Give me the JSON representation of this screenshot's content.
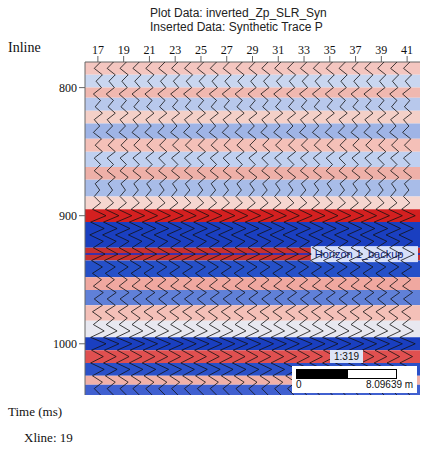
{
  "chart_data": {
    "type": "seismic_section",
    "title": "Plot Data: inverted_Zp_SLR_Syn",
    "subtitle": "Inserted Data: Synthetic Trace P",
    "x_label": "Inline",
    "y_label": "Time (ms)",
    "footer": "Xline: 19",
    "xlim": [
      16,
      42
    ],
    "xticks": [
      17,
      19,
      21,
      23,
      25,
      27,
      29,
      31,
      33,
      35,
      37,
      39,
      41
    ],
    "ylim": [
      780,
      1040
    ],
    "yticks": [
      800,
      900,
      1000
    ],
    "inlines": [
      17,
      18,
      19,
      20,
      21,
      22,
      23,
      24,
      25,
      26,
      27,
      28,
      29,
      30,
      31,
      32,
      33,
      34,
      35,
      36,
      37,
      38,
      39,
      40,
      41
    ],
    "trace_times": [
      780,
      785,
      790,
      795,
      800,
      805,
      810,
      815,
      820,
      825,
      830,
      835,
      840,
      845,
      850,
      855,
      860,
      865,
      870,
      875,
      880,
      885,
      890,
      895,
      900,
      905,
      910,
      915,
      920,
      925,
      930,
      935,
      940,
      945,
      950,
      955,
      960,
      965,
      970,
      975,
      980,
      985,
      990,
      995,
      1000,
      1005,
      1010,
      1015,
      1020,
      1025,
      1030,
      1035,
      1040
    ],
    "trace_amplitude": [
      0.3,
      -0.4,
      0.5,
      -0.2,
      0.4,
      -0.5,
      0.3,
      -0.3,
      0.5,
      -0.4,
      0.2,
      -0.5,
      0.4,
      -0.3,
      0.5,
      -0.4,
      0.3,
      -0.4,
      0.5,
      -0.3,
      0.2,
      -0.4,
      0.3,
      -0.6,
      0.9,
      -0.8,
      0.7,
      -0.9,
      0.6,
      -0.5,
      0.8,
      -0.7,
      0.5,
      -0.6,
      0.4,
      -0.5,
      0.6,
      -0.4,
      0.5,
      -0.6,
      0.4,
      -0.5,
      0.7,
      -0.8,
      0.9,
      -0.7,
      0.6,
      -0.8,
      0.7,
      -0.6,
      0.5,
      -0.4,
      0.3
    ],
    "layers": [
      {
        "top": 780,
        "base": 790,
        "color": "#f4c6c0"
      },
      {
        "top": 790,
        "base": 800,
        "color": "#c9d6f0"
      },
      {
        "top": 800,
        "base": 808,
        "color": "#f0b8b0"
      },
      {
        "top": 808,
        "base": 818,
        "color": "#b8c8ec"
      },
      {
        "top": 818,
        "base": 828,
        "color": "#f4d0c8"
      },
      {
        "top": 828,
        "base": 840,
        "color": "#9fb4e6"
      },
      {
        "top": 840,
        "base": 850,
        "color": "#f4c0b8"
      },
      {
        "top": 850,
        "base": 862,
        "color": "#c0d0f0"
      },
      {
        "top": 862,
        "base": 872,
        "color": "#eeb0a8"
      },
      {
        "top": 872,
        "base": 885,
        "color": "#a8bce8"
      },
      {
        "top": 885,
        "base": 895,
        "color": "#f6d6d0"
      },
      {
        "top": 895,
        "base": 905,
        "color": "#d42020"
      },
      {
        "top": 905,
        "base": 925,
        "color": "#1a3fc0"
      },
      {
        "top": 925,
        "base": 935,
        "color": "#c83030"
      },
      {
        "top": 935,
        "base": 948,
        "color": "#2550c8"
      },
      {
        "top": 948,
        "base": 958,
        "color": "#f0a8a0"
      },
      {
        "top": 958,
        "base": 970,
        "color": "#6080d8"
      },
      {
        "top": 970,
        "base": 982,
        "color": "#f4c0b8"
      },
      {
        "top": 982,
        "base": 995,
        "color": "#e8e8f0"
      },
      {
        "top": 995,
        "base": 1005,
        "color": "#1a3fc0"
      },
      {
        "top": 1005,
        "base": 1015,
        "color": "#e05050"
      },
      {
        "top": 1015,
        "base": 1025,
        "color": "#2a50c8"
      },
      {
        "top": 1025,
        "base": 1032,
        "color": "#f0b0a8"
      },
      {
        "top": 1032,
        "base": 1040,
        "color": "#4060d0"
      }
    ],
    "horizon": {
      "name": "Horizon 1_backup",
      "time": 930,
      "color": "#1030d0"
    },
    "scale_bar": {
      "ratio": "1:319",
      "start": 0,
      "end": {
        "value": 8.09639,
        "label": "8.09639 m"
      }
    }
  }
}
